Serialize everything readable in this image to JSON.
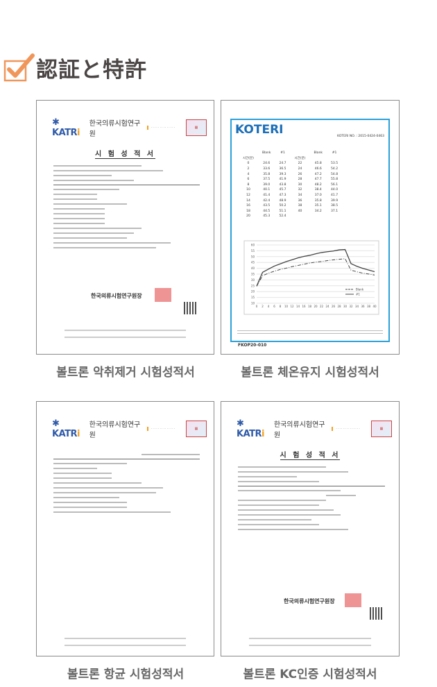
{
  "heading": {
    "title": "認証と特許",
    "icon": "checkbox-check-icon",
    "accent": "#f0965a"
  },
  "documents": [
    {
      "caption": "볼트론 악취제거 시험성적서",
      "org_logo": "KATRI",
      "org_name": "한국의류시험연구원",
      "doc_title": "시 험 성 적 서",
      "signature": "한국의류시험연구원장"
    },
    {
      "caption": "볼트론 체온유지 시험성적서",
      "org_logo": "KOTERI",
      "report_no": "KOTERI NO. : 2015-0424-0463",
      "form_code": "FKOP20-010",
      "table": {
        "headers": [
          "시간(분)",
          "Blank",
          "#1"
        ],
        "rows": [
          [
            "0",
            "24.6",
            "24.7"
          ],
          [
            "2",
            "33.6",
            "36.5"
          ],
          [
            "4",
            "35.8",
            "39.3"
          ],
          [
            "6",
            "37.5",
            "41.9"
          ],
          [
            "8",
            "39.0",
            "43.8"
          ],
          [
            "10",
            "40.1",
            "45.7"
          ],
          [
            "12",
            "41.4",
            "47.3"
          ],
          [
            "14",
            "42.4",
            "48.9"
          ],
          [
            "16",
            "43.5",
            "50.2"
          ],
          [
            "18",
            "44.5",
            "51.1"
          ],
          [
            "20",
            "45.3",
            "52.4"
          ],
          [
            "22",
            "45.8",
            "53.5"
          ],
          [
            "24",
            "46.6",
            "54.2"
          ],
          [
            "26",
            "47.2",
            "54.8"
          ],
          [
            "28",
            "47.7",
            "55.8"
          ],
          [
            "30",
            "48.2",
            "56.1"
          ],
          [
            "32",
            "38.4",
            "44.0"
          ],
          [
            "34",
            "37.0",
            "41.7"
          ],
          [
            "36",
            "35.8",
            "39.9"
          ],
          [
            "38",
            "35.1",
            "38.5"
          ],
          [
            "40",
            "34.2",
            "37.1"
          ]
        ]
      },
      "chart_data": {
        "type": "line",
        "x": [
          0,
          2,
          4,
          6,
          8,
          10,
          12,
          14,
          16,
          18,
          20,
          22,
          24,
          26,
          28,
          30,
          32,
          34,
          36,
          38,
          40
        ],
        "ylim": [
          10,
          60
        ],
        "xlim": [
          0,
          40
        ],
        "series": [
          {
            "name": "Blank",
            "values": [
              24.6,
              33.6,
              35.8,
              37.5,
              39.0,
              40.1,
              41.4,
              42.4,
              43.5,
              44.5,
              45.3,
              45.8,
              46.6,
              47.2,
              47.7,
              48.2,
              38.4,
              37.0,
              35.8,
              35.1,
              34.2
            ]
          },
          {
            "name": "#1",
            "values": [
              24.7,
              36.5,
              39.3,
              41.9,
              43.8,
              45.7,
              47.3,
              48.9,
              50.2,
              51.1,
              52.4,
              53.5,
              54.2,
              54.8,
              55.8,
              56.1,
              44.0,
              41.7,
              39.9,
              38.5,
              37.1
            ]
          }
        ]
      }
    },
    {
      "caption": "볼트론 항균 시험성적서",
      "org_logo": "KATRI",
      "org_name": "한국의류시험연구원",
      "doc_title": "시 험 성 적 서"
    },
    {
      "caption": "볼트론 KC인증 시험성적서",
      "org_logo": "KATRI",
      "org_name": "한국의류시험연구원",
      "doc_title": "시 험 성 적 서",
      "signature": "한국의류시험연구원장"
    }
  ]
}
